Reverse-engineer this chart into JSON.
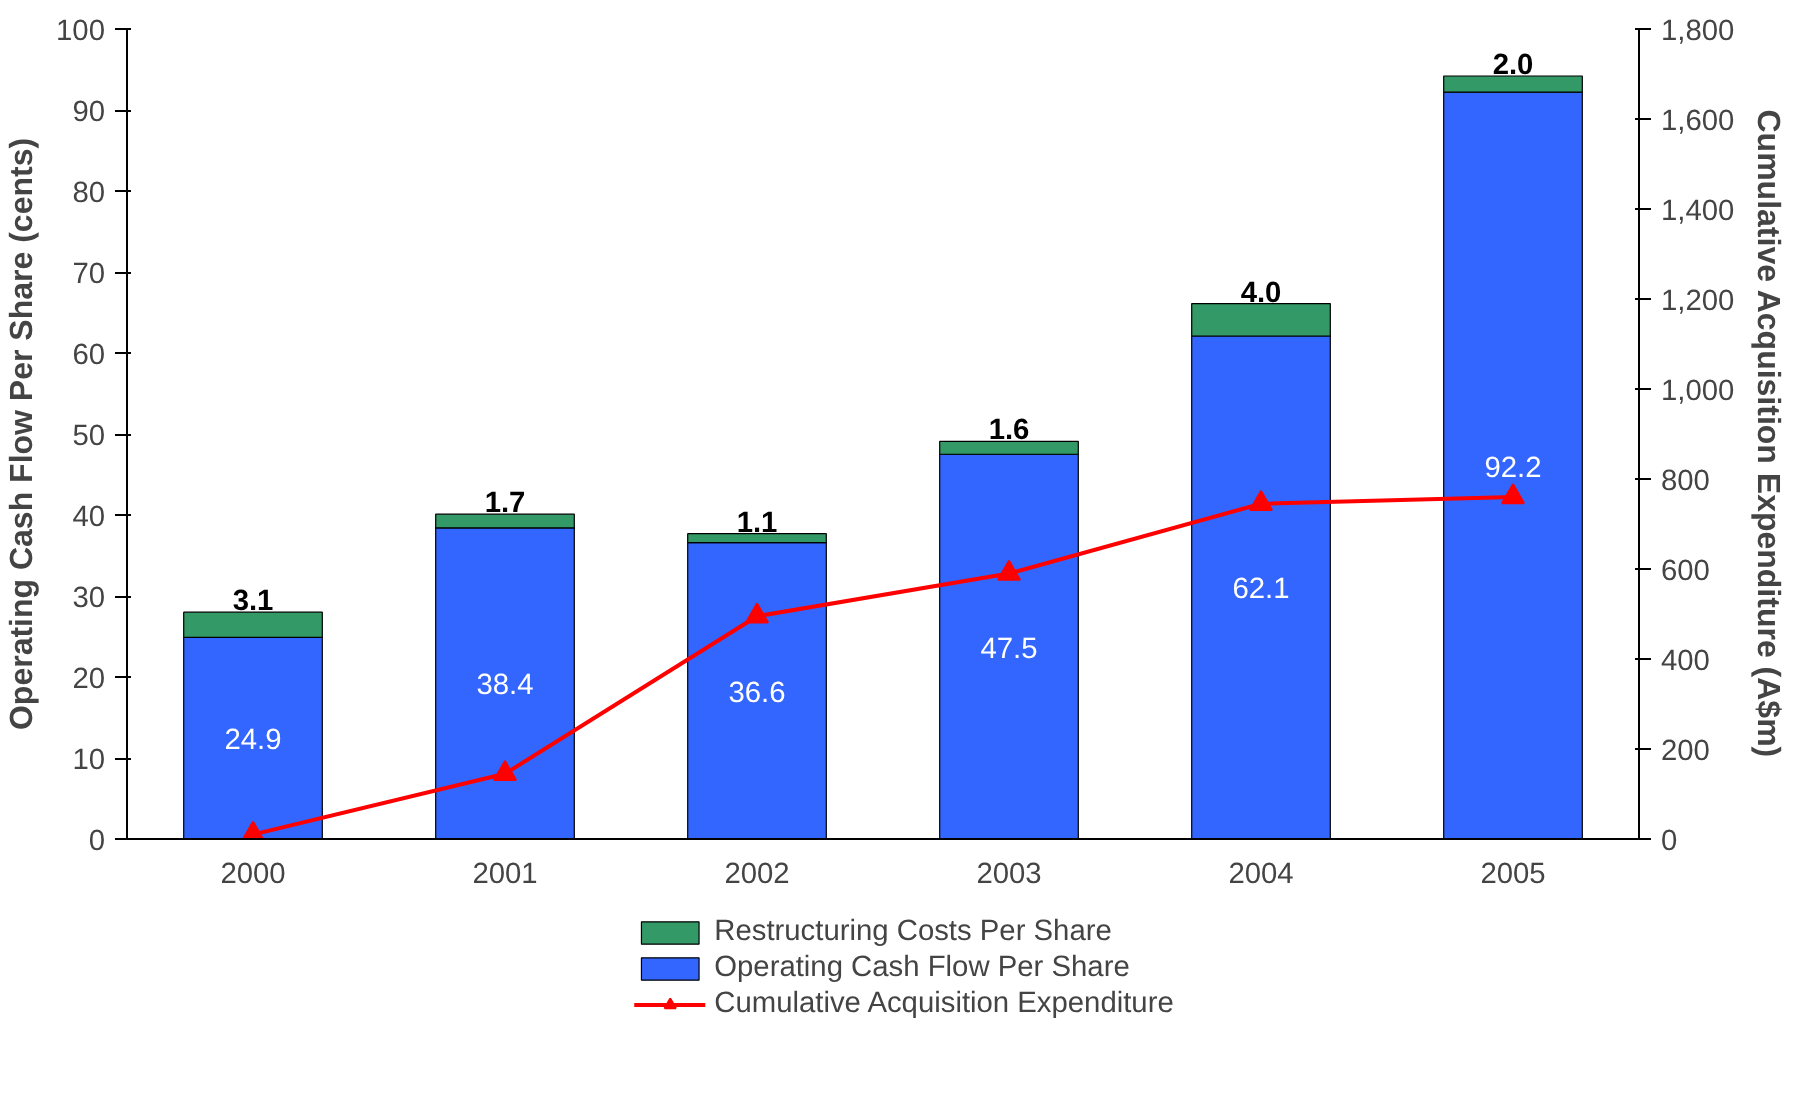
{
  "chart_data": {
    "type": "bar",
    "stacked": true,
    "categories": [
      "2000",
      "2001",
      "2002",
      "2003",
      "2004",
      "2005"
    ],
    "ylabel": "Operating Cash Flow Per Share (cents)",
    "y2label": "Cumulative Acquisition Expenditure (A$m)",
    "series": [
      {
        "name": "Operating Cash Flow Per Share",
        "color": "#3366ff",
        "values": [
          24.9,
          38.4,
          36.6,
          47.5,
          62.1,
          92.2
        ],
        "value_labels": [
          "24.9",
          "38.4",
          "36.6",
          "47.5",
          "62.1",
          "92.2"
        ]
      },
      {
        "name": "Restructuring Costs Per Share",
        "color": "#339966",
        "values": [
          3.1,
          1.7,
          1.1,
          1.6,
          4.0,
          2.0
        ],
        "value_labels": [
          "3.1",
          "1.7",
          "1.1",
          "1.6",
          "4.0",
          "2.0"
        ]
      },
      {
        "name": "Cumulative Acquisition Expenditure",
        "type": "line",
        "axis": "y2",
        "color": "#ff0000",
        "marker": "triangle",
        "values": [
          10,
          145,
          495,
          590,
          745,
          760
        ]
      }
    ],
    "ylim": [
      0,
      100
    ],
    "yticks": [
      0,
      10,
      20,
      30,
      40,
      50,
      60,
      70,
      80,
      90,
      100
    ],
    "y2lim": [
      0,
      1800
    ],
    "y2ticks": [
      0,
      200,
      400,
      600,
      800,
      {
        "value": 1000,
        "label": "1,000"
      },
      {
        "value": 1200,
        "label": "1,200"
      },
      {
        "value": 1400,
        "label": "1,400"
      },
      {
        "value": 1600,
        "label": "1,600"
      },
      {
        "value": 1800,
        "label": "1,800"
      }
    ],
    "grid": false,
    "legend": "bottom"
  }
}
